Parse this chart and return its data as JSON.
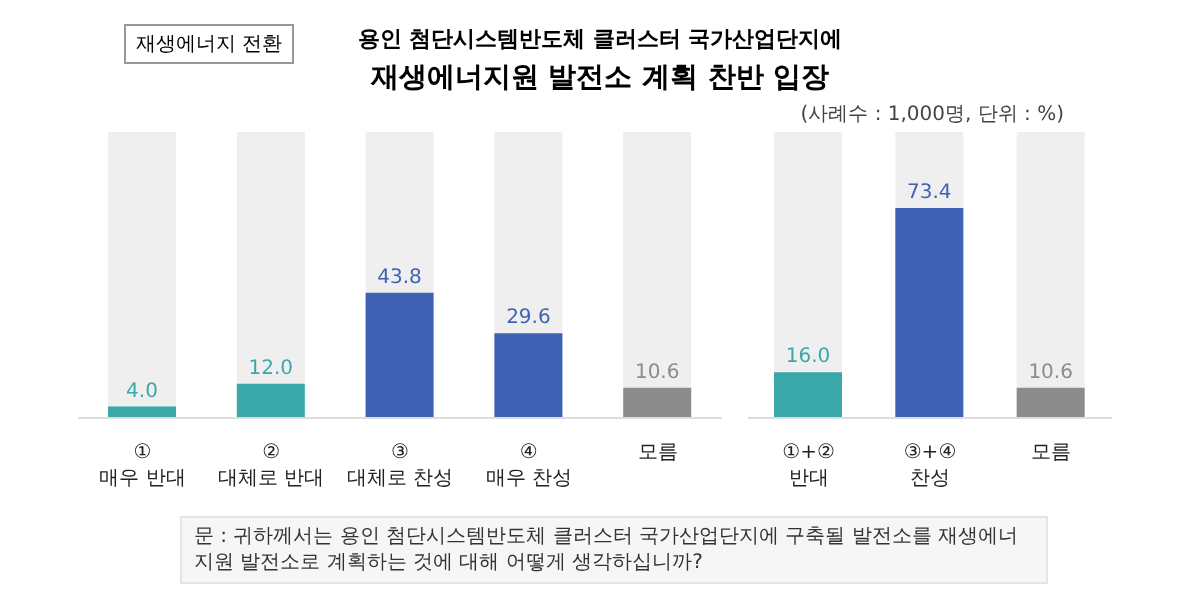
{
  "chart_data": [
    {
      "type": "bar",
      "subtitle": "용인 첨단시스템반도체 클러스터 국가산업단지에",
      "title": "재생에너지원 발전소 계획 찬반 입장",
      "annotations": [
        "재생에너지 전환",
        "(사례수 : 1,000명, 단위 : %)",
        "문 : 귀하께서는 용인 첨단시스템반도체 클러스터 국가산업단지에 구축될 발전소를 재생에너지원 발전소로 계획하는 것에 대해 어떻게 생각하십니까?"
      ],
      "categories": [
        "①\n매우 반대",
        "②\n대체로 반대",
        "③\n대체로 찬성",
        "④\n매우 찬성",
        "모름"
      ],
      "values": [
        4.0,
        12.0,
        43.8,
        29.6,
        10.6
      ],
      "colors": [
        "#3aa8a8",
        "#3aa8a8",
        "#3f62b4",
        "#3f62b4",
        "#8c8c8c"
      ],
      "value_labels": [
        "4.0",
        "12.0",
        "43.8",
        "29.6",
        "10.6"
      ],
      "ylim": [
        0,
        100
      ],
      "grid": false,
      "legend": false,
      "tick_labels": "x"
    },
    {
      "type": "bar",
      "categories": [
        "①+②\n반대",
        "③+④\n찬성",
        "모름"
      ],
      "values": [
        16.0,
        73.4,
        10.6
      ],
      "colors": [
        "#3aa8a8",
        "#3f62b4",
        "#8c8c8c"
      ],
      "value_labels": [
        "16.0",
        "73.4",
        "10.6"
      ],
      "ylim": [
        0,
        100
      ],
      "grid": false,
      "legend": false,
      "tick_labels": "x"
    }
  ]
}
